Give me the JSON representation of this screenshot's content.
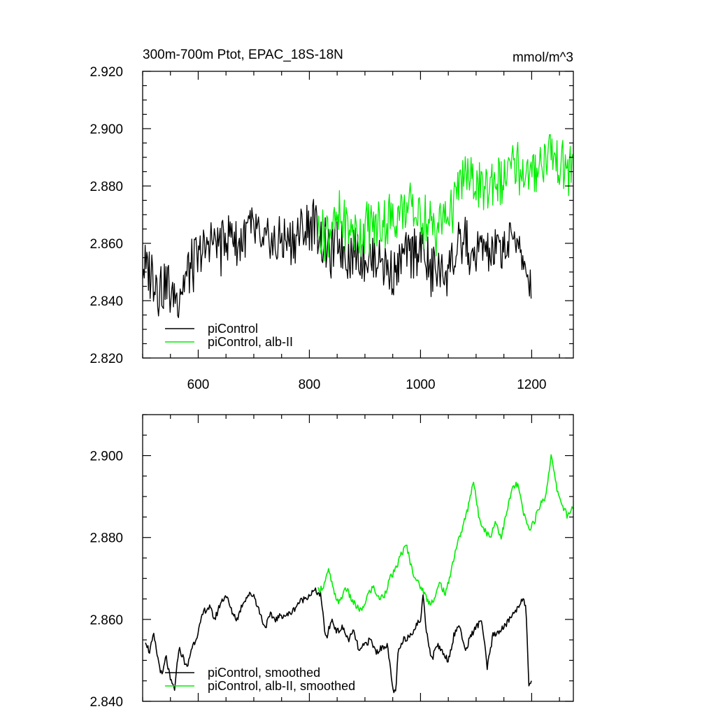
{
  "colors": {
    "picontrol": "#000000",
    "alb": "#00ee00",
    "axis": "#000000"
  },
  "chart_data": [
    {
      "type": "line",
      "title": "300m-700m Ptot, EPAC_18S-18N",
      "units": "mmol/m^3",
      "xlim": [
        500,
        1275
      ],
      "ylim": [
        2.82,
        2.92
      ],
      "x_ticks": [
        600,
        800,
        1000,
        1200
      ],
      "x_tick_labels": [
        "600",
        "800",
        "1000",
        "1200"
      ],
      "y_ticks": [
        2.82,
        2.84,
        2.86,
        2.88,
        2.9,
        2.92
      ],
      "y_tick_labels": [
        "2.820",
        "2.840",
        "2.860",
        "2.880",
        "2.900",
        "2.920"
      ],
      "legend_placement": "bottom-left",
      "series": [
        {
          "name": "piControl",
          "color": "#000000",
          "x": [
            500,
            510,
            520,
            530,
            540,
            550,
            560,
            570,
            580,
            590,
            600,
            610,
            620,
            630,
            640,
            650,
            660,
            670,
            680,
            690,
            700,
            710,
            720,
            730,
            740,
            750,
            760,
            770,
            780,
            790,
            800,
            810,
            820,
            830,
            840,
            850,
            860,
            870,
            880,
            890,
            900,
            910,
            920,
            930,
            940,
            950,
            960,
            970,
            980,
            990,
            1000,
            1010,
            1020,
            1030,
            1040,
            1050,
            1060,
            1070,
            1080,
            1090,
            1100,
            1110,
            1120,
            1130,
            1140,
            1150,
            1160,
            1170,
            1180,
            1190,
            1200
          ],
          "y": [
            2.85,
            2.852,
            2.848,
            2.845,
            2.846,
            2.843,
            2.841,
            2.844,
            2.85,
            2.853,
            2.855,
            2.857,
            2.86,
            2.861,
            2.859,
            2.862,
            2.863,
            2.86,
            2.862,
            2.864,
            2.865,
            2.86,
            2.858,
            2.861,
            2.859,
            2.862,
            2.86,
            2.862,
            2.863,
            2.864,
            2.866,
            2.867,
            2.862,
            2.858,
            2.856,
            2.862,
            2.859,
            2.856,
            2.858,
            2.855,
            2.857,
            2.854,
            2.856,
            2.855,
            2.853,
            2.85,
            2.852,
            2.856,
            2.854,
            2.858,
            2.86,
            2.855,
            2.85,
            2.852,
            2.848,
            2.853,
            2.855,
            2.858,
            2.862,
            2.852,
            2.856,
            2.86,
            2.858,
            2.855,
            2.857,
            2.86,
            2.859,
            2.862,
            2.858,
            2.845,
            2.848
          ]
        },
        {
          "name": "piControl, alb-II",
          "color": "#00ee00",
          "x": [
            815,
            830,
            845,
            860,
            875,
            890,
            905,
            920,
            935,
            950,
            965,
            980,
            995,
            1010,
            1025,
            1040,
            1055,
            1070,
            1085,
            1100,
            1115,
            1130,
            1145,
            1160,
            1175,
            1190,
            1205,
            1220,
            1235,
            1250,
            1265,
            1275
          ],
          "y": [
            2.866,
            2.864,
            2.866,
            2.868,
            2.865,
            2.862,
            2.866,
            2.867,
            2.869,
            2.868,
            2.872,
            2.873,
            2.869,
            2.867,
            2.865,
            2.868,
            2.872,
            2.879,
            2.883,
            2.881,
            2.879,
            2.882,
            2.88,
            2.885,
            2.887,
            2.884,
            2.886,
            2.889,
            2.893,
            2.887,
            2.885,
            2.887
          ]
        }
      ]
    },
    {
      "type": "line",
      "title": "",
      "xlim": [
        500,
        1275
      ],
      "ylim": [
        2.84,
        2.91
      ],
      "x_ticks": [
        600,
        800,
        1000,
        1200
      ],
      "y_ticks": [
        2.84,
        2.86,
        2.88,
        2.9
      ],
      "y_tick_labels": [
        "2.840",
        "2.860",
        "2.880",
        "2.900"
      ],
      "legend_placement": "bottom-left",
      "series": [
        {
          "name": "piControl, smoothed",
          "color": "#000000",
          "x": [
            505,
            512,
            520,
            528,
            535,
            542,
            550,
            558,
            565,
            572,
            580,
            588,
            595,
            602,
            610,
            620,
            630,
            640,
            650,
            660,
            670,
            680,
            690,
            700,
            710,
            720,
            730,
            740,
            750,
            760,
            770,
            780,
            790,
            800,
            810,
            820,
            830,
            840,
            850,
            860,
            870,
            880,
            890,
            900,
            910,
            920,
            930,
            940,
            950,
            955,
            960,
            970,
            980,
            990,
            1000,
            1005,
            1010,
            1020,
            1030,
            1040,
            1050,
            1060,
            1070,
            1080,
            1090,
            1100,
            1110,
            1120,
            1130,
            1140,
            1150,
            1160,
            1170,
            1180,
            1185,
            1190,
            1195,
            1200
          ],
          "y": [
            2.855,
            2.852,
            2.856,
            2.85,
            2.846,
            2.851,
            2.845,
            2.843,
            2.853,
            2.851,
            2.848,
            2.853,
            2.855,
            2.858,
            2.862,
            2.863,
            2.86,
            2.864,
            2.866,
            2.862,
            2.86,
            2.864,
            2.866,
            2.866,
            2.862,
            2.858,
            2.861,
            2.86,
            2.861,
            2.861,
            2.862,
            2.864,
            2.865,
            2.866,
            2.867,
            2.866,
            2.855,
            2.86,
            2.857,
            2.858,
            2.855,
            2.857,
            2.852,
            2.854,
            2.855,
            2.852,
            2.853,
            2.854,
            2.843,
            2.842,
            2.852,
            2.855,
            2.856,
            2.858,
            2.86,
            2.866,
            2.858,
            2.85,
            2.854,
            2.852,
            2.85,
            2.856,
            2.859,
            2.852,
            2.856,
            2.858,
            2.86,
            2.848,
            2.856,
            2.857,
            2.858,
            2.86,
            2.862,
            2.864,
            2.866,
            2.862,
            2.843,
            2.845
          ]
        },
        {
          "name": "piControl, alb-II, smoothed",
          "color": "#00ee00",
          "x": [
            815,
            825,
            835,
            845,
            855,
            865,
            875,
            885,
            895,
            905,
            915,
            925,
            935,
            945,
            955,
            965,
            975,
            985,
            995,
            1005,
            1015,
            1025,
            1035,
            1045,
            1055,
            1065,
            1075,
            1085,
            1095,
            1105,
            1115,
            1125,
            1135,
            1145,
            1155,
            1165,
            1175,
            1185,
            1195,
            1205,
            1215,
            1225,
            1235,
            1245,
            1255,
            1265,
            1275
          ],
          "y": [
            2.867,
            2.868,
            2.872,
            2.866,
            2.864,
            2.868,
            2.865,
            2.863,
            2.862,
            2.866,
            2.868,
            2.865,
            2.866,
            2.87,
            2.872,
            2.876,
            2.878,
            2.872,
            2.869,
            2.867,
            2.864,
            2.865,
            2.869,
            2.866,
            2.872,
            2.878,
            2.882,
            2.887,
            2.894,
            2.885,
            2.882,
            2.88,
            2.884,
            2.88,
            2.886,
            2.892,
            2.893,
            2.886,
            2.882,
            2.884,
            2.888,
            2.89,
            2.9,
            2.892,
            2.888,
            2.885,
            2.888
          ]
        }
      ]
    }
  ]
}
